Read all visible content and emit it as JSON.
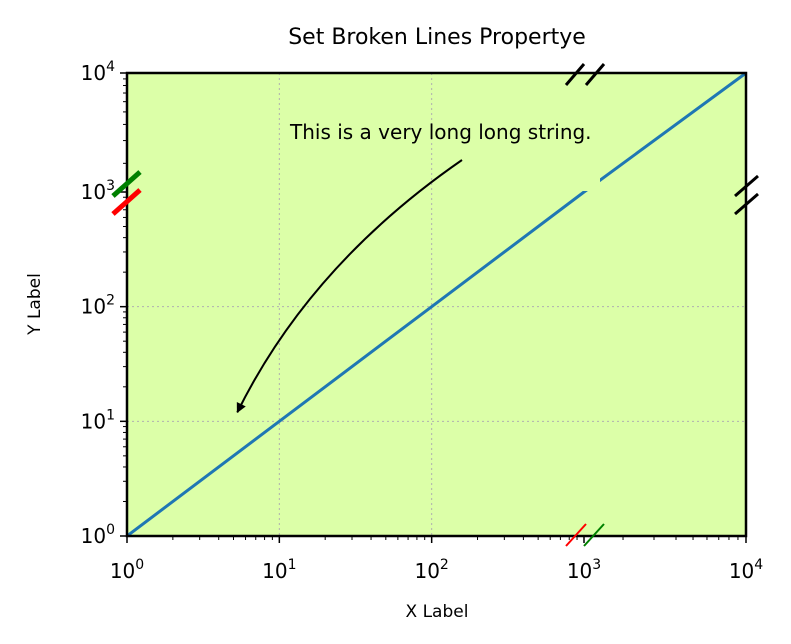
{
  "chart_data": {
    "type": "line",
    "title": "Set Broken Lines Propertye",
    "xlabel": "X Label",
    "ylabel": "Y Label",
    "xscale": "log",
    "yscale": "log",
    "xlim": [
      1,
      10000
    ],
    "ylim": [
      1,
      10000
    ],
    "x_break": [
      1000,
      1200
    ],
    "y_break": [
      1000,
      1200
    ],
    "x_ticks": [
      {
        "value": 1,
        "base": "10",
        "exp": "0"
      },
      {
        "value": 10,
        "base": "10",
        "exp": "1"
      },
      {
        "value": 100,
        "base": "10",
        "exp": "2"
      },
      {
        "value": 1000,
        "base": "10",
        "exp": "3"
      },
      {
        "value": 10000,
        "base": "10",
        "exp": "4"
      }
    ],
    "y_ticks": [
      {
        "value": 1,
        "base": "10",
        "exp": "0"
      },
      {
        "value": 10,
        "base": "10",
        "exp": "1"
      },
      {
        "value": 100,
        "base": "10",
        "exp": "2"
      },
      {
        "value": 1000,
        "base": "10",
        "exp": "3"
      },
      {
        "value": 10000,
        "base": "10",
        "exp": "4"
      }
    ],
    "series": [
      {
        "x": [
          1,
          10,
          100,
          1000,
          1200,
          10000
        ],
        "y": [
          1,
          10,
          100,
          1000,
          1200,
          10000
        ],
        "color": "#1f77b4"
      }
    ],
    "annotation": {
      "text": "This is a very long long string.",
      "arrow_to": [
        5.3,
        12
      ]
    },
    "grid": true,
    "background": "#dcffa8",
    "break_mark_colors": {
      "upper": "#008000",
      "lower": "#ff0000",
      "default": "#000000"
    }
  }
}
